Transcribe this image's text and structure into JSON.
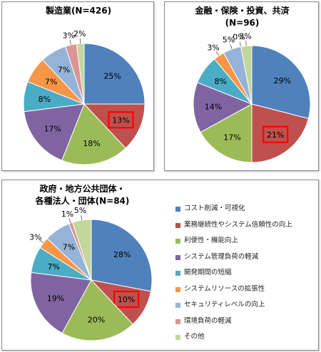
{
  "chart_data": [
    {
      "type": "pie",
      "title": "製造業(N=426)",
      "categories": [
        "コスト削減・可視化",
        "業務継続性やシステム信頼性の向上",
        "利便性・機能向上",
        "システム管理負荷の軽減",
        "開発期間の短縮",
        "システムリソースの拡張性",
        "セキュリティレベルの向上",
        "環境負荷の軽減",
        "その他"
      ],
      "values": [
        25,
        13,
        18,
        17,
        8,
        7,
        7,
        3,
        2
      ],
      "labels": [
        "25%",
        "13%",
        "18%",
        "17%",
        "8%",
        "7%",
        "7%",
        "3%",
        "2%"
      ],
      "highlight_index": 1
    },
    {
      "type": "pie",
      "title": "金融・保険・投資、共済",
      "subtitle": "(N=96)",
      "categories": [
        "コスト削減・可視化",
        "業務継続性やシステム信頼性の向上",
        "利便性・機能向上",
        "システム管理負荷の軽減",
        "開発期間の短縮",
        "システムリソースの拡張性",
        "セキュリティレベルの向上",
        "環境負荷の軽減",
        "その他"
      ],
      "values": [
        29,
        21,
        17,
        14,
        8,
        3,
        5,
        0,
        3
      ],
      "labels": [
        "29%",
        "21%",
        "17%",
        "14%",
        "8%",
        "3%",
        "5%",
        "0%",
        "3%"
      ],
      "highlight_index": 1
    },
    {
      "type": "pie",
      "title": "政府・地方公共団体・",
      "subtitle": "各種法人・団体(N=84)",
      "categories": [
        "コスト削減・可視化",
        "業務継続性やシステム信頼性の向上",
        "利便性・機能向上",
        "システム管理負荷の軽減",
        "開発期間の短縮",
        "システムリソースの拡張性",
        "セキュリティレベルの向上",
        "環境負荷の軽減",
        "その他"
      ],
      "values": [
        28,
        10,
        20,
        19,
        7,
        3,
        7,
        1,
        5
      ],
      "labels": [
        "28%",
        "10%",
        "20%",
        "19%",
        "7%",
        "3%",
        "7%",
        "1%",
        "5%"
      ],
      "highlight_index": 1
    }
  ],
  "legend": [
    {
      "label": "コスト削減・可視化",
      "color": "#4F81BD"
    },
    {
      "label": "業務継続性やシステム信頼性の向上",
      "color": "#C0504D"
    },
    {
      "label": "利便性・機能向上",
      "color": "#9BBB59"
    },
    {
      "label": "システム管理負荷の軽減",
      "color": "#8064A2"
    },
    {
      "label": "開発期間の短縮",
      "color": "#4BACC6"
    },
    {
      "label": "システムリソースの拡張性",
      "color": "#F79646"
    },
    {
      "label": "セキュリティレベルの向上",
      "color": "#95B3D7"
    },
    {
      "label": "環境負荷の軽減",
      "color": "#D99694"
    },
    {
      "label": "その他",
      "color": "#C3D69B"
    }
  ],
  "highlight_color": "#FF0000"
}
